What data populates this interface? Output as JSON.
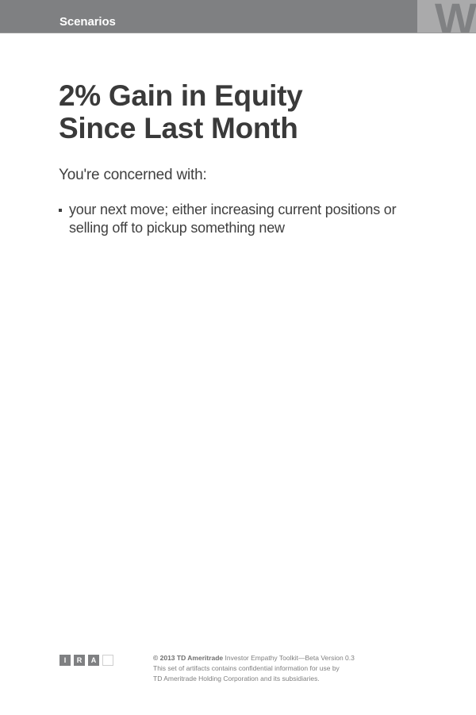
{
  "header": {
    "section_label": "Scenarios",
    "corner_letter": "W"
  },
  "content": {
    "title_lines": [
      "2% Gain in Equity",
      "Since Last Month"
    ],
    "intro": "You're concerned with:",
    "concerns": [
      "your next move; either increasing current positions or selling off to pickup something new"
    ]
  },
  "footer": {
    "tags": [
      "I",
      "R",
      "A",
      ""
    ],
    "copyright": "© 2013 TD Ameritrade",
    "product": "Investor Empathy Toolkit—Beta Version 0.3",
    "notice_line1": "This set of artifacts contains confidential information for use by",
    "notice_line2": "TD Ameritrade Holding Corporation and its subsidiaries."
  },
  "colors": {
    "header_bar": "#7f8082",
    "corner_tab": "#aaaaab",
    "body_text": "#3d3d3d",
    "footer_text": "#808080"
  }
}
